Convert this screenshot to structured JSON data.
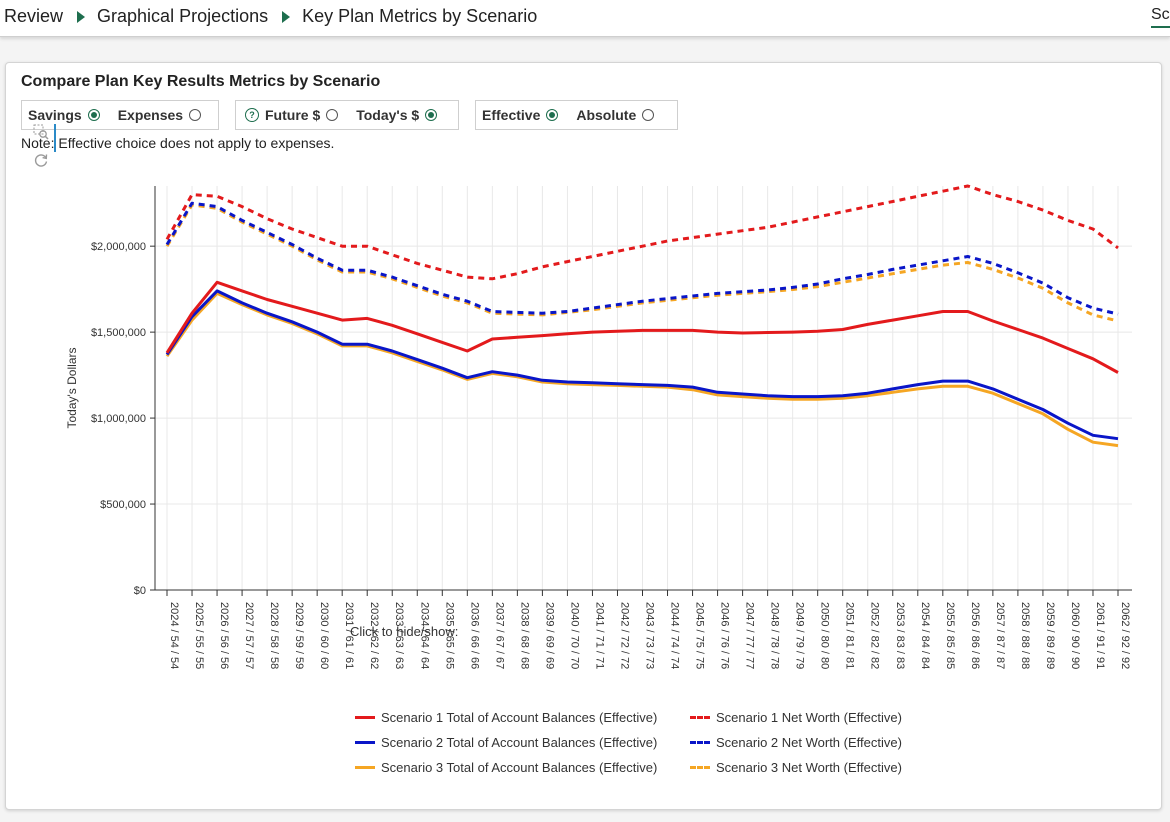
{
  "breadcrumb": {
    "items": [
      "Review",
      "Graphical Projections",
      "Key Plan Metrics by Scenario"
    ],
    "right_tab": "Sce"
  },
  "panel": {
    "title": "Compare Plan Key Results Metrics by Scenario",
    "groups": [
      {
        "options": [
          {
            "label": "Savings",
            "selected": true
          },
          {
            "label": "Expenses",
            "selected": false
          }
        ]
      },
      {
        "options": [
          {
            "label": "Future $",
            "selected": false
          },
          {
            "label": "Today's $",
            "selected": true
          }
        ],
        "help": "?"
      },
      {
        "options": [
          {
            "label": "Effective",
            "selected": true
          },
          {
            "label": "Absolute",
            "selected": false
          }
        ]
      }
    ],
    "note": "Note: Effective choice does not apply to expenses."
  },
  "colors": {
    "accent": "#1e6e4e",
    "s1": "#e31a1c",
    "s2": "#0a16c8",
    "s3": "#f5a623"
  },
  "icons": {
    "zoom": "box-zoom-icon",
    "reset": "reset-icon"
  },
  "chart_data": {
    "type": "line",
    "ylabel": "Today's Dollars",
    "xlabel": "",
    "ylim": [
      0,
      2350000
    ],
    "yticks": [
      0,
      500000,
      1000000,
      1500000,
      2000000
    ],
    "ytick_labels": [
      "$0",
      "$500,000",
      "$1,000,000",
      "$1,500,000",
      "$2,000,000"
    ],
    "grid": true,
    "legend_title": "Click to hide/show:",
    "legend_position": "bottom",
    "categories": [
      "2024 / 54 / 54",
      "2025 / 55 / 55",
      "2026 / 56 / 56",
      "2027 / 57 / 57",
      "2028 / 58 / 58",
      "2029 / 59 / 59",
      "2030 / 60 / 60",
      "2031 / 61 / 61",
      "2032 / 62 / 62",
      "2033 / 63 / 63",
      "2034 / 64 / 64",
      "2035 / 65 / 65",
      "2036 / 66 / 66",
      "2037 / 67 / 67",
      "2038 / 68 / 68",
      "2039 / 69 / 69",
      "2040 / 70 / 70",
      "2041 / 71 / 71",
      "2042 / 72 / 72",
      "2043 / 73 / 73",
      "2044 / 74 / 74",
      "2045 / 75 / 75",
      "2046 / 76 / 76",
      "2047 / 77 / 77",
      "2048 / 78 / 78",
      "2049 / 79 / 79",
      "2050 / 80 / 80",
      "2051 / 81 / 81",
      "2052 / 82 / 82",
      "2053 / 83 / 83",
      "2054 / 84 / 84",
      "2055 / 85 / 85",
      "2056 / 86 / 86",
      "2057 / 87 / 87",
      "2058 / 88 / 88",
      "2059 / 89 / 89",
      "2060 / 90 / 90",
      "2061 / 91 / 91",
      "2062 / 92 / 92"
    ],
    "series": [
      {
        "name": "Scenario 1 Total of Account Balances (Effective)",
        "color": "#e31a1c",
        "dash": false,
        "values": [
          1380000,
          1610000,
          1790000,
          1740000,
          1690000,
          1650000,
          1610000,
          1570000,
          1580000,
          1540000,
          1490000,
          1440000,
          1390000,
          1460000,
          1470000,
          1480000,
          1490000,
          1500000,
          1505000,
          1510000,
          1510000,
          1510000,
          1500000,
          1495000,
          1498000,
          1500000,
          1505000,
          1515000,
          1545000,
          1570000,
          1595000,
          1620000,
          1620000,
          1565000,
          1515000,
          1465000,
          1405000,
          1345000,
          1265000
        ]
      },
      {
        "name": "Scenario 1 Net Worth (Effective)",
        "color": "#e31a1c",
        "dash": true,
        "values": [
          2040000,
          2300000,
          2290000,
          2230000,
          2160000,
          2100000,
          2050000,
          2000000,
          2000000,
          1950000,
          1900000,
          1860000,
          1820000,
          1810000,
          1840000,
          1880000,
          1910000,
          1940000,
          1970000,
          2000000,
          2030000,
          2050000,
          2070000,
          2090000,
          2110000,
          2140000,
          2170000,
          2200000,
          2230000,
          2260000,
          2290000,
          2320000,
          2350000,
          2300000,
          2260000,
          2210000,
          2150000,
          2100000,
          1990000
        ]
      },
      {
        "name": "Scenario 2 Total of Account Balances (Effective)",
        "color": "#0a16c8",
        "dash": false,
        "values": [
          1370000,
          1590000,
          1740000,
          1670000,
          1610000,
          1560000,
          1500000,
          1430000,
          1430000,
          1390000,
          1340000,
          1290000,
          1235000,
          1270000,
          1250000,
          1220000,
          1210000,
          1205000,
          1200000,
          1195000,
          1190000,
          1180000,
          1150000,
          1140000,
          1130000,
          1125000,
          1125000,
          1130000,
          1145000,
          1170000,
          1195000,
          1215000,
          1215000,
          1170000,
          1110000,
          1050000,
          970000,
          900000,
          880000
        ]
      },
      {
        "name": "Scenario 2 Net Worth (Effective)",
        "color": "#0a16c8",
        "dash": true,
        "values": [
          2010000,
          2250000,
          2230000,
          2150000,
          2080000,
          2010000,
          1930000,
          1860000,
          1860000,
          1820000,
          1770000,
          1720000,
          1680000,
          1620000,
          1615000,
          1610000,
          1620000,
          1640000,
          1660000,
          1680000,
          1695000,
          1710000,
          1725000,
          1735000,
          1745000,
          1760000,
          1780000,
          1810000,
          1835000,
          1865000,
          1890000,
          1915000,
          1940000,
          1900000,
          1845000,
          1785000,
          1700000,
          1640000,
          1605000
        ]
      },
      {
        "name": "Scenario 3 Total of Account Balances (Effective)",
        "color": "#f5a623",
        "dash": false,
        "values": [
          1360000,
          1570000,
          1725000,
          1660000,
          1600000,
          1550000,
          1490000,
          1420000,
          1420000,
          1380000,
          1330000,
          1280000,
          1225000,
          1260000,
          1240000,
          1210000,
          1200000,
          1195000,
          1190000,
          1185000,
          1180000,
          1165000,
          1135000,
          1125000,
          1115000,
          1110000,
          1110000,
          1115000,
          1130000,
          1150000,
          1170000,
          1185000,
          1185000,
          1145000,
          1085000,
          1025000,
          935000,
          860000,
          840000
        ]
      },
      {
        "name": "Scenario 3 Net Worth (Effective)",
        "color": "#f5a623",
        "dash": true,
        "values": [
          2000000,
          2240000,
          2220000,
          2140000,
          2070000,
          2000000,
          1920000,
          1850000,
          1850000,
          1810000,
          1760000,
          1710000,
          1670000,
          1610000,
          1605000,
          1600000,
          1615000,
          1630000,
          1650000,
          1670000,
          1685000,
          1700000,
          1715000,
          1725000,
          1735000,
          1748000,
          1765000,
          1790000,
          1815000,
          1840000,
          1865000,
          1890000,
          1905000,
          1865000,
          1815000,
          1755000,
          1670000,
          1600000,
          1565000
        ]
      }
    ]
  }
}
